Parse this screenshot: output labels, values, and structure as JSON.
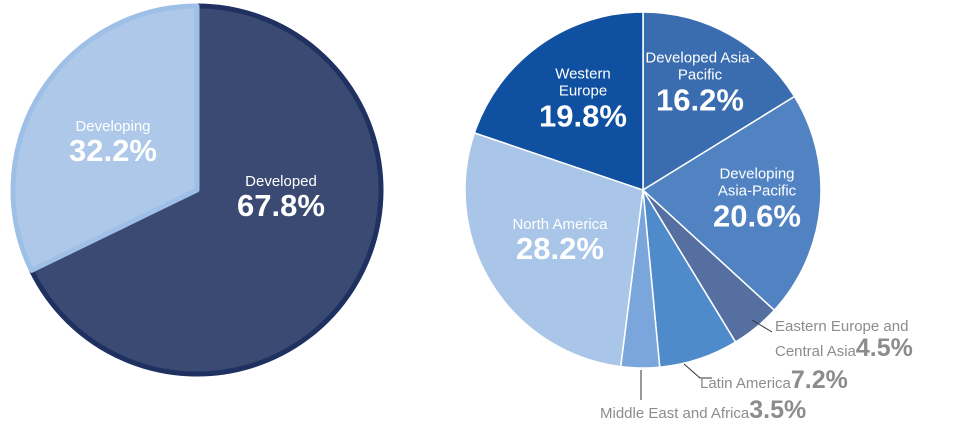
{
  "chart_data": [
    {
      "type": "pie",
      "categories": [
        "Developed",
        "Developing"
      ],
      "values": [
        67.8,
        32.2
      ],
      "value_labels": [
        "67.8%",
        "32.2%"
      ],
      "colors": [
        "#3b4a72",
        "#adc8e8"
      ],
      "edge_colors": [
        "#1e3160",
        "#9fc0e6"
      ]
    },
    {
      "type": "pie",
      "categories": [
        "Developed Asia-Pacific",
        "Developing Asia-Pacific",
        "Eastern Europe and Central Asia",
        "Latin America",
        "Middle East and Africa",
        "North America",
        "Western Europe"
      ],
      "values": [
        16.2,
        20.6,
        4.5,
        7.2,
        3.5,
        28.2,
        19.8
      ],
      "value_labels": [
        "16.2%",
        "20.6%",
        "4.5%",
        "7.2%",
        "3.5%",
        "28.2%",
        "19.8%"
      ],
      "colors": [
        "#3a6db0",
        "#5183c3",
        "#556fa0",
        "#4f8acb",
        "#7aa6dc",
        "#a9c6e8",
        "#1050a0"
      ],
      "edge_colors": [
        "#ffffff",
        "#ffffff",
        "#ffffff",
        "#ffffff",
        "#ffffff",
        "#ffffff",
        "#ffffff"
      ]
    }
  ]
}
